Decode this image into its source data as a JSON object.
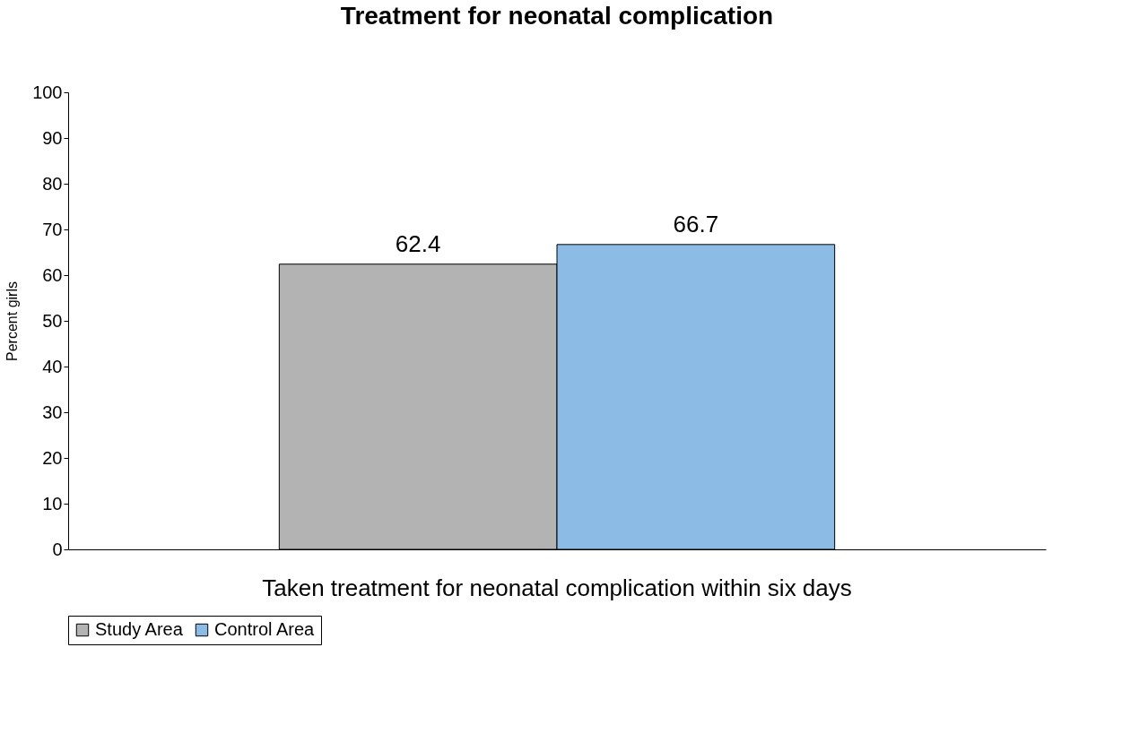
{
  "chart_data": {
    "type": "bar",
    "title": "Treatment for neonatal complication",
    "xlabel": null,
    "ylabel": "Percent girls",
    "categories": [
      "Taken treatment for neonatal complication within six days"
    ],
    "series": [
      {
        "name": "Study Area",
        "color": "#b3b3b3",
        "values": [
          62.4
        ]
      },
      {
        "name": "Control Area",
        "color": "#8cbce6",
        "values": [
          66.7
        ]
      }
    ],
    "ylim": [
      0,
      100
    ],
    "yticks": [
      0,
      10,
      20,
      30,
      40,
      50,
      60,
      70,
      80,
      90,
      100
    ],
    "grid": false,
    "legend": "bottom",
    "data_labels": true
  }
}
